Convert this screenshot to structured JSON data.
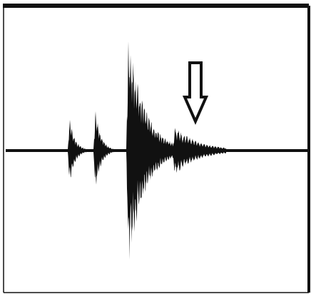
{
  "colors": {
    "ink": "#111111",
    "background": "#ffffff",
    "arrow_fill": "#ffffff"
  },
  "figure": {
    "baseline": {
      "present": true
    },
    "frame": {
      "present": true
    },
    "arrow": {
      "direction": "down",
      "style": "outlined",
      "points_to": "fourth-burst"
    },
    "bursts": [
      {
        "id": "burst-1",
        "relative_amplitude": 0.38,
        "decay": "fast"
      },
      {
        "id": "burst-2",
        "relative_amplitude": 0.45,
        "decay": "fast"
      },
      {
        "id": "burst-3",
        "relative_amplitude": 1.0,
        "decay": "medium"
      },
      {
        "id": "burst-4",
        "relative_amplitude": 0.2,
        "decay": "slow"
      }
    ]
  }
}
